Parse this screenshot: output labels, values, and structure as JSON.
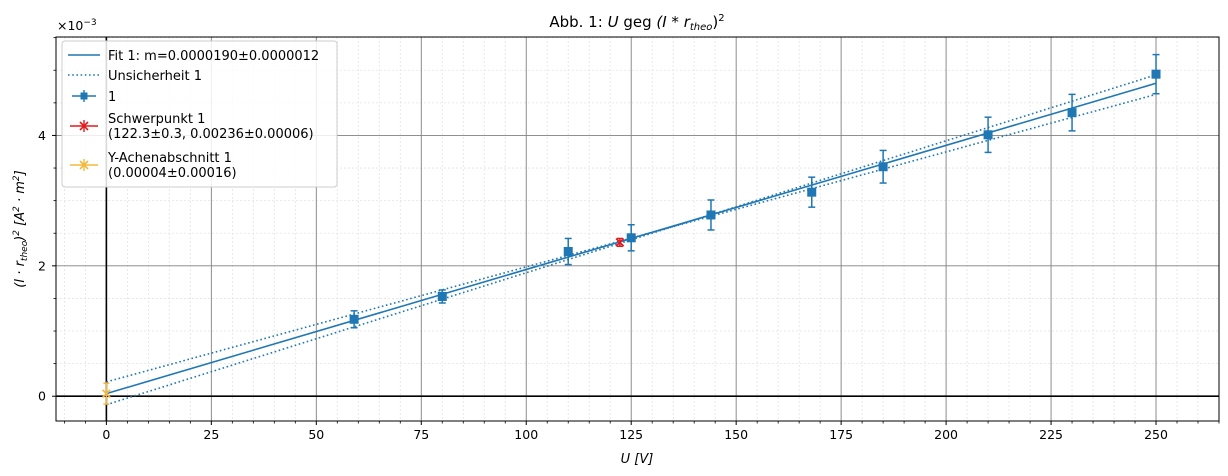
{
  "chart_data": {
    "type": "scatter",
    "title": "Abb. 1: U  geg (I * r_theo)^2",
    "title_parts": {
      "prefix": "Abb. 1: ",
      "u": "U",
      "geg": "geg",
      "paren": "(I * r",
      "sub": "theo",
      "close": ")",
      "sup": "2"
    },
    "xlabel": "U [V]",
    "xlabel_parts": {
      "var": "U",
      "unit": "[V]"
    },
    "ylabel": "(I · r_theo)^2 [A^2 · m^2]",
    "ylabel_parts": {
      "main": "(I · r",
      "sub": "theo",
      "close": ")",
      "sup": "2",
      "unit_open": " [A",
      "unit_mid": " · m",
      "unit_close": "]"
    },
    "y_scale_note": "×10^-3",
    "y_scale_parts": {
      "base": "×10",
      "exp": "−3"
    },
    "xlim": [
      -12,
      265
    ],
    "ylim": [
      -0.00038,
      0.00551
    ],
    "x_ticks": [
      0,
      25,
      50,
      75,
      100,
      125,
      150,
      175,
      200,
      225,
      250
    ],
    "x_tick_labels": [
      "0",
      "25",
      "50",
      "75",
      "100",
      "125",
      "150",
      "175",
      "200",
      "225",
      "250"
    ],
    "y_ticks": [
      0,
      0.002,
      0.004
    ],
    "y_tick_labels": [
      "0",
      "2",
      "4"
    ],
    "grid": true,
    "legend_position": "top-left",
    "colors": {
      "data": "#1f77b4",
      "centroid": "#e31a1c",
      "intercept": "#f4b83f"
    },
    "series": [
      {
        "name": "1",
        "kind": "points-with-errorbars",
        "points": [
          {
            "x": 59,
            "y": 0.00118,
            "yerr": 0.00013
          },
          {
            "x": 80,
            "y": 0.00153,
            "yerr": 0.0001
          },
          {
            "x": 110,
            "y": 0.00222,
            "yerr": 0.0002
          },
          {
            "x": 125,
            "y": 0.00243,
            "yerr": 0.0002
          },
          {
            "x": 144,
            "y": 0.00278,
            "yerr": 0.00023
          },
          {
            "x": 168,
            "y": 0.00313,
            "yerr": 0.00023
          },
          {
            "x": 185,
            "y": 0.00352,
            "yerr": 0.00025
          },
          {
            "x": 210,
            "y": 0.00401,
            "yerr": 0.00027
          },
          {
            "x": 230,
            "y": 0.00435,
            "yerr": 0.00028
          },
          {
            "x": 250,
            "y": 0.00494,
            "yerr": 0.0003
          }
        ]
      },
      {
        "name": "Fit 1: m=0.0000190±0.0000012",
        "kind": "line",
        "x": [
          0,
          250
        ],
        "y": [
          4e-05,
          0.0048
        ]
      },
      {
        "name": "Unsicherheit 1",
        "kind": "dotted",
        "upper": {
          "x": [
            0,
            250
          ],
          "y": [
            -0.00013,
            0.00493
          ]
        },
        "lower": {
          "x": [
            0,
            250
          ],
          "y": [
            0.00022,
            0.00463
          ]
        }
      },
      {
        "name": "Schwerpunkt 1\n(122.3±0.3, 0.00236±0.00006)",
        "kind": "point",
        "x": 122.3,
        "xerr": 0.3,
        "y": 0.00236,
        "yerr": 6e-05
      },
      {
        "name": "Y-Achenabschnitt 1\n(0.00004±0.00016)",
        "kind": "point",
        "x": 0,
        "y": 4e-05,
        "yerr": 0.00016
      }
    ],
    "legend": [
      {
        "kind": "line",
        "label": "Fit 1: m=0.0000190±0.0000012"
      },
      {
        "kind": "dotted",
        "label": "Unsicherheit 1"
      },
      {
        "kind": "errbar-square",
        "label": "1"
      },
      {
        "kind": "errbar-x",
        "label_line1": "Schwerpunkt 1",
        "label_line2": "(122.3±0.3, 0.00236±0.00006)"
      },
      {
        "kind": "errbar-x-gold",
        "label_line1": "Y-Achenabschnitt 1",
        "label_line2": "(0.00004±0.00016)"
      }
    ]
  }
}
